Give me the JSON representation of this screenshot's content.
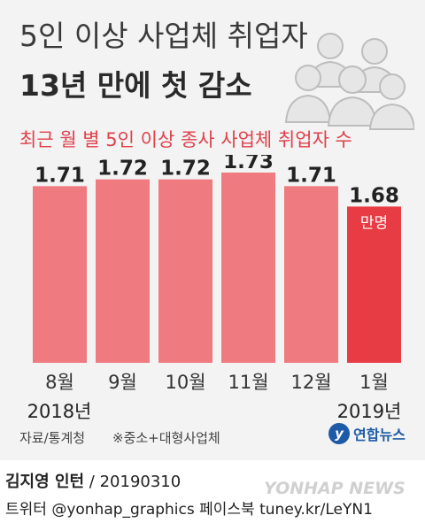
{
  "title_line1": "5인 이상 사업체 취업자",
  "title_line2": "13년 만에 첫 감소",
  "subtitle": "최근 월 별 5인 이상 종사 사업체 취업자 수",
  "unit_label": "만명",
  "year_labels": [
    "2018년",
    "2019년"
  ],
  "source": "자료/통계청",
  "note": "※중소+대형사업체",
  "logo_text": "연합뉴스",
  "credit_name": "김지영 인턴",
  "credit_date": " / 20190310",
  "social": "트위터 @yonhap_graphics  페이스북 tuney.kr/LeYN1",
  "watermark": "YONHAP NEWS",
  "colors": {
    "bar": "#ef7a80",
    "bar_highlight": "#e83c45",
    "subtitle": "#e0404a",
    "background": "#f3f3f3"
  },
  "chart_data": {
    "type": "bar",
    "title": "최근 월 별 5인 이상 종사 사업체 취업자 수",
    "categories": [
      "8월",
      "9월",
      "10월",
      "11월",
      "12월",
      "1월"
    ],
    "values": [
      1.71,
      1.72,
      1.72,
      1.73,
      1.71,
      1.68
    ],
    "value_labels": [
      "1.71",
      "1.72",
      "1.72",
      "1.73",
      "1.71",
      "1.68"
    ],
    "unit": "만명",
    "highlight_index": 5,
    "grid": false,
    "legend": "none"
  }
}
